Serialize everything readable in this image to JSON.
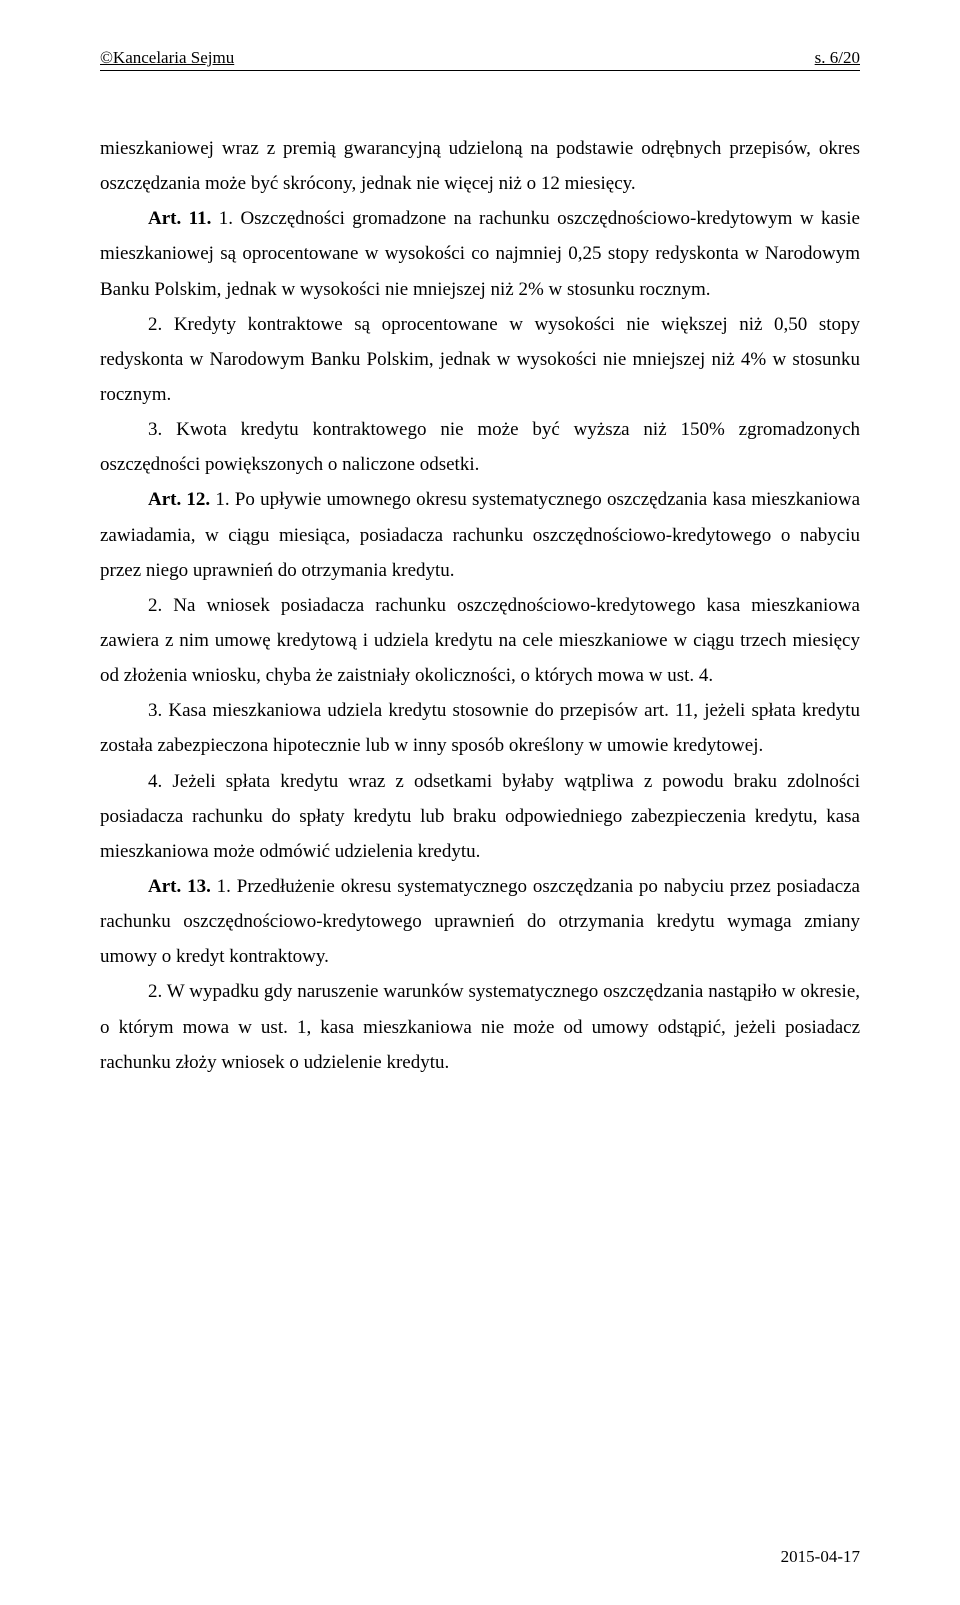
{
  "header": {
    "left": "©Kancelaria Sejmu",
    "right": "s. 6/20"
  },
  "paragraphs": {
    "p1": "mieszkaniowej wraz z premią gwarancyjną udzieloną na podstawie odrębnych przepisów, okres oszczędzania może być skrócony, jednak nie więcej niż o 12 miesięcy.",
    "p2_bold": "Art. 11.",
    "p2_rest": " 1. Oszczędności gromadzone na rachunku oszczędnościowo-kredytowym w kasie mieszkaniowej są oprocentowane w wysokości co najmniej 0,25 stopy redyskonta w Narodowym Banku Polskim, jednak w wysokości nie mniejszej niż 2% w stosunku rocznym.",
    "p3": "2. Kredyty kontraktowe są oprocentowane w wysokości nie większej niż 0,50 stopy redyskonta w Narodowym Banku Polskim, jednak w wysokości nie mniejszej niż 4% w stosunku rocznym.",
    "p4": "3. Kwota kredytu kontraktowego nie może być wyższa niż 150% zgromadzonych oszczędności powiększonych o naliczone odsetki.",
    "p5_bold": "Art. 12.",
    "p5_rest": " 1. Po upływie umownego okresu systematycznego oszczędzania kasa mieszkaniowa zawiadamia, w ciągu miesiąca, posiadacza rachunku oszczędnościowo-kredytowego o nabyciu przez niego uprawnień do otrzymania kredytu.",
    "p6": "2. Na wniosek posiadacza rachunku oszczędnościowo-kredytowego kasa mieszkaniowa zawiera z nim umowę kredytową i udziela kredytu na cele mieszkaniowe w ciągu trzech miesięcy od złożenia wniosku, chyba że zaistniały okoliczności, o których mowa w ust. 4.",
    "p7": "3. Kasa mieszkaniowa udziela kredytu stosownie do przepisów art. 11, jeżeli spłata kredytu została zabezpieczona hipotecznie lub w inny sposób określony w umowie kredytowej.",
    "p8": "4. Jeżeli spłata kredytu wraz z odsetkami byłaby wątpliwa z powodu braku zdolności posiadacza rachunku do spłaty kredytu lub braku odpowiedniego zabezpieczenia kredytu, kasa mieszkaniowa może odmówić udzielenia kredytu.",
    "p9_bold": "Art. 13.",
    "p9_rest": " 1. Przedłużenie okresu systematycznego oszczędzania po nabyciu przez posiadacza rachunku oszczędnościowo-kredytowego uprawnień do otrzymania kredytu wymaga zmiany umowy o kredyt kontraktowy.",
    "p10": "2. W wypadku gdy naruszenie warunków systematycznego oszczędzania nastąpiło w okresie, o którym mowa w ust. 1, kasa mieszkaniowa nie może od umowy odstąpić, jeżeli posiadacz rachunku złoży wniosek o udzielenie kredytu."
  },
  "footer": {
    "date": "2015-04-17"
  }
}
